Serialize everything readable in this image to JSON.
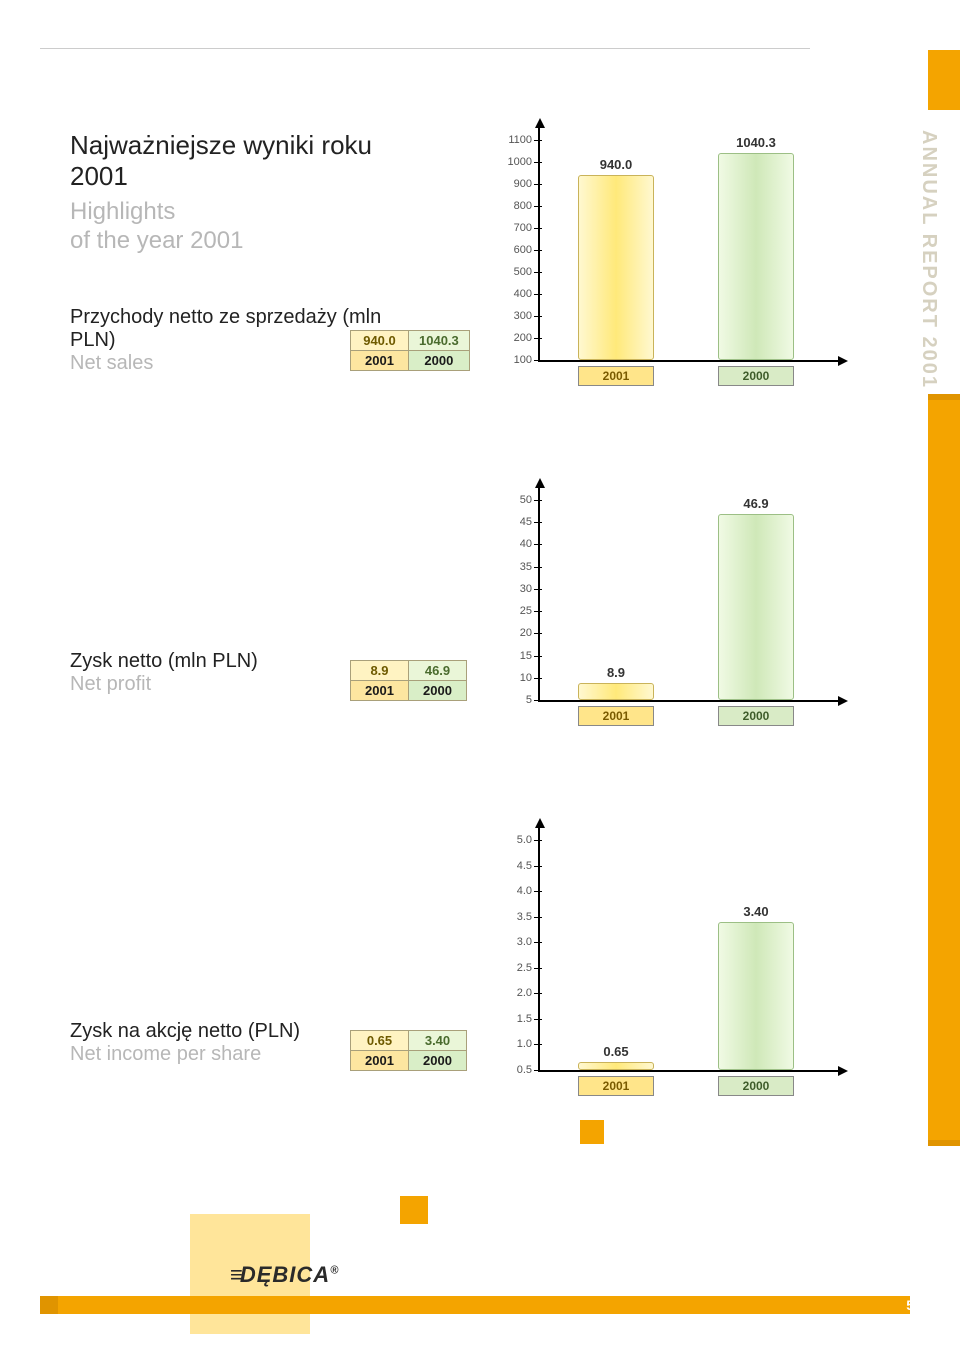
{
  "page_number": "5",
  "sidebar_text": "ANNUAL REPORT 2001",
  "logo_text": "DĘBICA",
  "logo_r": "®",
  "heading": {
    "pl": "Najważniejsze wyniki roku 2001",
    "en_line1": "Highlights",
    "en_line2": "of the year 2001"
  },
  "colors": {
    "accent": "#f4a400",
    "bar_yellow_border": "#c9b35a",
    "bar_green_border": "#9cbf85",
    "cat_yellow_bg": "#ffe58a",
    "cat_green_bg": "#d9ebc6"
  },
  "metrics": [
    {
      "label_pl": "Przychody netto ze sprzedaży (mln PLN)",
      "label_en": "Net sales",
      "table": {
        "v2001": "940.0",
        "v2000": "1040.3",
        "y2001": "2001",
        "y2000": "2000"
      },
      "chart": {
        "type": "bar",
        "ylim": [
          100,
          1100
        ],
        "ytick_step": 100,
        "ticks": [
          "1100",
          "1000",
          "900",
          "800",
          "700",
          "600",
          "500",
          "400",
          "300",
          "200",
          "100"
        ],
        "bars": [
          {
            "cat": "2001",
            "value": 940.0,
            "label": "940.0",
            "color": "yellow"
          },
          {
            "cat": "2000",
            "value": 1040.3,
            "label": "1040.3",
            "color": "green"
          }
        ]
      }
    },
    {
      "label_pl": "Zysk netto (mln PLN)",
      "label_en": "Net profit",
      "table": {
        "v2001": "8.9",
        "v2000": "46.9",
        "y2001": "2001",
        "y2000": "2000"
      },
      "chart": {
        "type": "bar",
        "ylim": [
          5,
          50
        ],
        "ytick_step": 5,
        "ticks": [
          "50",
          "45",
          "40",
          "35",
          "30",
          "25",
          "20",
          "15",
          "10",
          "5"
        ],
        "bars": [
          {
            "cat": "2001",
            "value": 8.9,
            "label": "8.9",
            "color": "yellow"
          },
          {
            "cat": "2000",
            "value": 46.9,
            "label": "46.9",
            "color": "green"
          }
        ]
      }
    },
    {
      "label_pl": "Zysk na akcję netto (PLN)",
      "label_en": "Net income per share",
      "table": {
        "v2001": "0.65",
        "v2000": "3.40",
        "y2001": "2001",
        "y2000": "2000"
      },
      "chart": {
        "type": "bar",
        "ylim": [
          0.5,
          5.0
        ],
        "ytick_step": 0.5,
        "ticks": [
          "5.0",
          "4.5",
          "4.0",
          "3.5",
          "3.0",
          "2.5",
          "2.0",
          "1.5",
          "1.0",
          "0.5"
        ],
        "bars": [
          {
            "cat": "2001",
            "value": 0.65,
            "label": "0.65",
            "color": "yellow"
          },
          {
            "cat": "2000",
            "value": 3.4,
            "label": "3.40",
            "color": "green"
          }
        ]
      }
    }
  ]
}
